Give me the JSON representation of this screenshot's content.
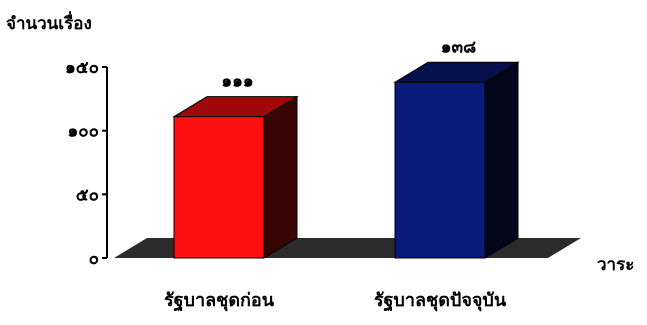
{
  "chart_data": {
    "type": "bar",
    "ylabel": "จำนวนเรื่อง",
    "xlabel": "วาระ",
    "categories": [
      "รัฐบาลชุดก่อน",
      "รัฐบาลชุดปัจจุบัน"
    ],
    "values": [
      111,
      138
    ],
    "value_labels": [
      "๑๑๑",
      "๑๓๘"
    ],
    "ylim": [
      0,
      150
    ],
    "yticks": [
      0,
      50,
      100,
      150
    ],
    "ytick_labels": [
      "๐",
      "๕๐",
      "๑๐๐",
      "๑๕๐"
    ],
    "colors": [
      "#ff1010",
      "#0a1a7a"
    ],
    "grid": false,
    "style": "3d"
  }
}
